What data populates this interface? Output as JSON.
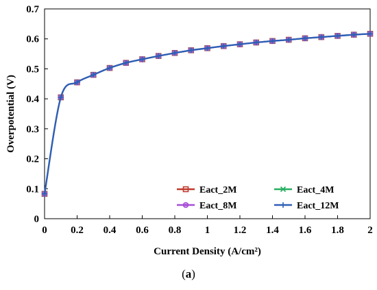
{
  "caption": {
    "open": "(",
    "letter": "a",
    "close": ")"
  },
  "chart_data": {
    "type": "line",
    "xlabel": "Current Density (A/cm²)",
    "ylabel": "Overpotential (V)",
    "xlim": [
      0,
      2
    ],
    "ylim": [
      0,
      0.7
    ],
    "x_ticks": [
      "0",
      "0.2",
      "0.4",
      "0.6",
      "0.8",
      "1",
      "1.2",
      "1.4",
      "1.6",
      "1.8",
      "2"
    ],
    "y_ticks": [
      "0",
      "0.1",
      "0.2",
      "0.3",
      "0.4",
      "0.5",
      "0.6",
      "0.7"
    ],
    "grid": false,
    "legend_position": "bottom-right",
    "x": [
      0,
      0.1,
      0.2,
      0.3,
      0.4,
      0.5,
      0.6,
      0.7,
      0.8,
      0.9,
      1.0,
      1.1,
      1.2,
      1.3,
      1.4,
      1.5,
      1.6,
      1.7,
      1.8,
      1.9,
      2.0
    ],
    "series": [
      {
        "name": "Eact_2M",
        "color": "#c0392b",
        "marker": "square",
        "values": [
          0.083,
          0.405,
          0.455,
          0.48,
          0.503,
          0.52,
          0.532,
          0.543,
          0.553,
          0.562,
          0.569,
          0.576,
          0.582,
          0.588,
          0.593,
          0.597,
          0.602,
          0.606,
          0.61,
          0.614,
          0.617
        ]
      },
      {
        "name": "Eact_4M",
        "color": "#27ae60",
        "marker": "x",
        "values": [
          0.083,
          0.405,
          0.455,
          0.48,
          0.503,
          0.52,
          0.532,
          0.543,
          0.553,
          0.562,
          0.569,
          0.576,
          0.582,
          0.588,
          0.593,
          0.597,
          0.602,
          0.606,
          0.61,
          0.614,
          0.617
        ]
      },
      {
        "name": "Eact_8M",
        "color": "#a64dd6",
        "marker": "circle",
        "values": [
          0.083,
          0.405,
          0.455,
          0.48,
          0.503,
          0.52,
          0.532,
          0.543,
          0.553,
          0.562,
          0.569,
          0.576,
          0.582,
          0.588,
          0.593,
          0.597,
          0.602,
          0.606,
          0.61,
          0.614,
          0.617
        ]
      },
      {
        "name": "Eact_12M",
        "color": "#2e5fb5",
        "marker": "plus",
        "values": [
          0.083,
          0.405,
          0.455,
          0.48,
          0.503,
          0.52,
          0.532,
          0.543,
          0.553,
          0.562,
          0.569,
          0.576,
          0.582,
          0.588,
          0.593,
          0.597,
          0.602,
          0.606,
          0.61,
          0.614,
          0.617
        ]
      }
    ]
  }
}
